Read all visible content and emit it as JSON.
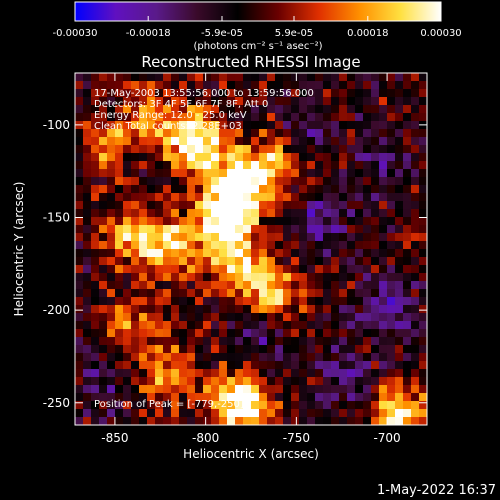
{
  "colorbar": {
    "tick_labels": [
      "-0.00030",
      "-0.00018",
      "-5.9e-05",
      "5.9e-05",
      "0.00018",
      "0.00030"
    ],
    "tick_values": [
      -0.0003,
      -0.00018,
      -5.9e-05,
      5.9e-05,
      0.00018,
      0.0003
    ],
    "range": [
      -0.0003,
      0.0003
    ],
    "unit_label": "(photons cm⁻² s⁻¹ asec⁻²)",
    "colormap": [
      "#0000ff",
      "#6010c0",
      "#5a1a8a",
      "#3a0a2a",
      "#000000",
      "#6a0000",
      "#e03000",
      "#ff9000",
      "#ffe040",
      "#ffffff"
    ]
  },
  "chart_data": {
    "type": "heatmap",
    "title": "Reconstructed RHESSI Image",
    "xlabel": "Heliocentric X (arcsec)",
    "ylabel": "Heliocentric Y (arcsec)",
    "xlim": [
      -872,
      -678
    ],
    "ylim": [
      -262,
      -72
    ],
    "x_ticks": [
      -850,
      -800,
      -750,
      -700
    ],
    "y_ticks": [
      -250,
      -200,
      -150,
      -100
    ],
    "x_tick_labels": [
      "-850",
      "-800",
      "-750",
      "-700"
    ],
    "y_tick_labels": [
      "-250",
      "-200",
      "-150",
      "-100"
    ],
    "info_lines": [
      "17-May-2003 13:55:56.000 to 13:59:56.000",
      "Detectors: 3F 4F 5F 6F 7F 8F, Att 0",
      "Energy Range: 12.0 - 25.0 keV",
      "Clean     Total counts: 2.28E+03"
    ],
    "peak_label": "Position of Peak = [-779,-250]",
    "peak_position": [
      -779,
      -250
    ],
    "bright_regions": [
      {
        "x": -790,
        "y": -148,
        "level": 1.0
      },
      {
        "x": -805,
        "y": -110,
        "level": 0.95
      },
      {
        "x": -780,
        "y": -250,
        "level": 1.0
      },
      {
        "x": -778,
        "y": -130,
        "level": 0.8
      },
      {
        "x": -785,
        "y": -175,
        "level": 0.75
      },
      {
        "x": -763,
        "y": -193,
        "level": 0.7
      },
      {
        "x": -820,
        "y": -165,
        "level": 0.65
      },
      {
        "x": -842,
        "y": -160,
        "level": 0.55
      },
      {
        "x": -840,
        "y": -210,
        "level": 0.5
      },
      {
        "x": -822,
        "y": -235,
        "level": 0.45
      },
      {
        "x": -695,
        "y": -255,
        "level": 0.75
      },
      {
        "x": -760,
        "y": -118,
        "level": 0.45
      },
      {
        "x": -855,
        "y": -110,
        "level": 0.4
      },
      {
        "x": -830,
        "y": -97,
        "level": 0.45
      }
    ],
    "dark_regions": [
      {
        "x": -700,
        "y": -200,
        "level": 0.8
      },
      {
        "x": -735,
        "y": -150,
        "level": 0.7
      },
      {
        "x": -720,
        "y": -240,
        "level": 0.6
      },
      {
        "x": -765,
        "y": -212,
        "level": 0.6
      },
      {
        "x": -745,
        "y": -103,
        "level": 0.55
      },
      {
        "x": -700,
        "y": -122,
        "level": 0.5
      },
      {
        "x": -858,
        "y": -240,
        "level": 0.5
      }
    ],
    "grid": false,
    "legend": "colorbar top"
  },
  "footer": {
    "timestamp": "1-May-2022 16:37"
  }
}
